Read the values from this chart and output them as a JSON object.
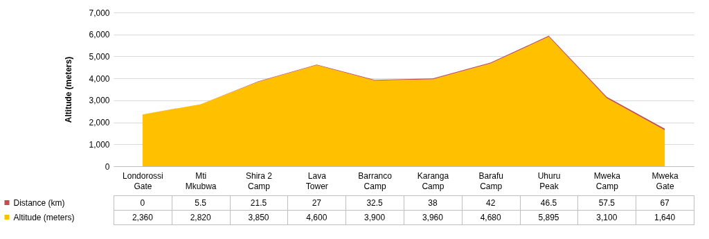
{
  "chart_data": {
    "type": "area",
    "stacked": true,
    "ylabel": "Altitude (meters)",
    "categories": [
      "Londorossi Gate",
      "Mti Mkubwa",
      "Shira 2 Camp",
      "Lava Tower",
      "Barranco Camp",
      "Karanga Camp",
      "Barafu Camp",
      "Uhuru Peak",
      "Mweka Camp",
      "Mweka Gate"
    ],
    "series": [
      {
        "name": "Altitude (meters)",
        "color": "#ffc000",
        "values": [
          2360,
          2820,
          3850,
          4600,
          3900,
          3960,
          4680,
          5895,
          3100,
          1640
        ],
        "value_labels": [
          "2,360",
          "2,820",
          "3,850",
          "4,600",
          "3,900",
          "3,960",
          "4,680",
          "5,895",
          "3,100",
          "1,640"
        ]
      },
      {
        "name": "Distance (km)",
        "color": "#c0504d",
        "values": [
          0,
          5.5,
          21.5,
          27,
          32.5,
          38,
          42,
          46.5,
          57.5,
          67
        ]
      }
    ],
    "ylim": [
      0,
      7000
    ],
    "yticks": [
      0,
      {
        "value": 1000,
        "label": "1,000"
      },
      {
        "value": 2000,
        "label": "2,000"
      },
      {
        "value": 3000,
        "label": "3,000"
      },
      {
        "value": 4000,
        "label": "4,000"
      },
      {
        "value": 5000,
        "label": "5,000"
      },
      {
        "value": 6000,
        "label": "6,000"
      },
      {
        "value": 7000,
        "label": "7,000"
      }
    ],
    "grid": "y",
    "legend": "bottom",
    "data_labels": true
  }
}
